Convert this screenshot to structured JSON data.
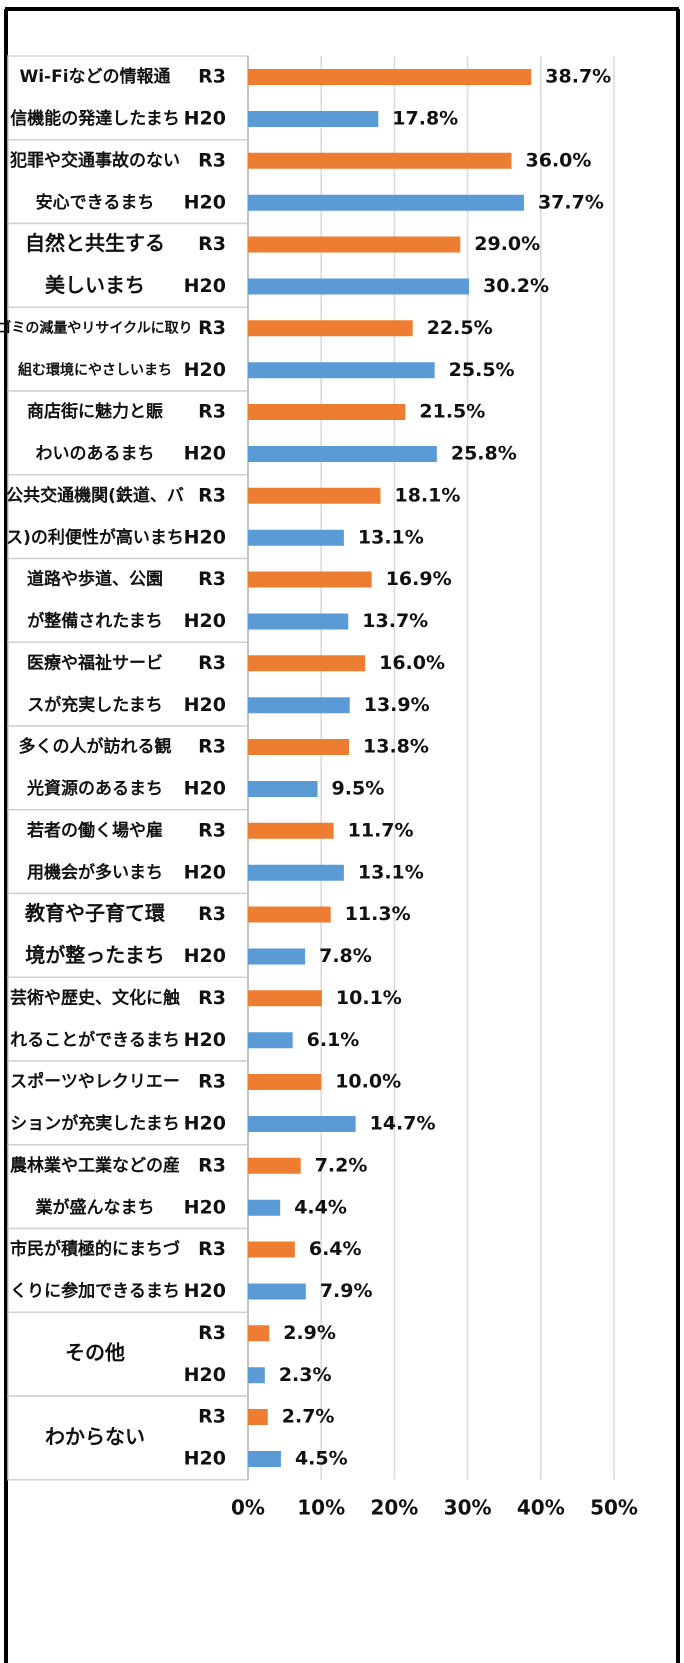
{
  "chart_data": {
    "type": "hbar",
    "categories": [
      [
        "Wi-Fiなどの情報通",
        "信機能の発達したまち"
      ],
      [
        "犯罪や交通事故のない",
        "安心できるまち"
      ],
      [
        "自然と共生する",
        "美しいまち"
      ],
      [
        "ゴミの減量やリサイクルに取り",
        "組む環境にやさしいまち"
      ],
      [
        "商店街に魅力と賑",
        "わいのあるまち"
      ],
      [
        "公共交通機関(鉄道、バ",
        "ス)の利便性が高いまち"
      ],
      [
        "道路や歩道、公園",
        "が整備されたまち"
      ],
      [
        "医療や福祉サービ",
        "スが充実したまち"
      ],
      [
        "多くの人が訪れる観",
        "光資源のあるまち"
      ],
      [
        "若者の働く場や雇",
        "用機会が多いまち"
      ],
      [
        "教育や子育て環",
        "境が整ったまち"
      ],
      [
        "芸術や歴史、文化に触",
        "れることができるまち"
      ],
      [
        "スポーツやレクリエー",
        "ションが充実したまち"
      ],
      [
        "農林業や工業などの産",
        "業が盛んなまち"
      ],
      [
        "市民が積極的にまちづ",
        "くりに参加できるまち"
      ],
      [
        "その他"
      ],
      [
        "わからない"
      ]
    ],
    "series": [
      {
        "name": "R3",
        "color": "#ed7d31",
        "values": [
          38.7,
          36.0,
          29.0,
          22.5,
          21.5,
          18.1,
          16.9,
          16.0,
          13.8,
          11.7,
          11.3,
          10.1,
          10.0,
          7.2,
          6.4,
          2.9,
          2.7
        ],
        "value_labels": [
          "38.7%",
          "36.0%",
          "29.0%",
          "22.5%",
          "21.5%",
          "18.1%",
          "16.9%",
          "16.0%",
          "13.8%",
          "11.7%",
          "11.3%",
          "10.1%",
          "10.0%",
          "7.2%",
          "6.4%",
          "2.9%",
          "2.7%"
        ]
      },
      {
        "name": "H20",
        "color": "#5b9bd5",
        "values": [
          17.8,
          37.7,
          30.2,
          25.5,
          25.8,
          13.1,
          13.7,
          13.9,
          9.5,
          13.1,
          7.8,
          6.1,
          14.7,
          4.4,
          7.9,
          2.3,
          4.5
        ],
        "value_labels": [
          "17.8%",
          "37.7%",
          "30.2%",
          "25.5%",
          "25.8%",
          "13.1%",
          "13.7%",
          "13.9%",
          "9.5%",
          "13.1%",
          "7.8%",
          "6.1%",
          "14.7%",
          "4.4%",
          "7.9%",
          "2.3%",
          "4.5%"
        ]
      }
    ],
    "xlim": [
      0,
      50
    ],
    "xticks": [
      {
        "value": 0,
        "label": "0%"
      },
      {
        "value": 10,
        "label": "10%"
      },
      {
        "value": 20,
        "label": "20%"
      },
      {
        "value": 30,
        "label": "30%"
      },
      {
        "value": 40,
        "label": "40%"
      },
      {
        "value": 50,
        "label": "50%"
      }
    ],
    "grid": true
  }
}
